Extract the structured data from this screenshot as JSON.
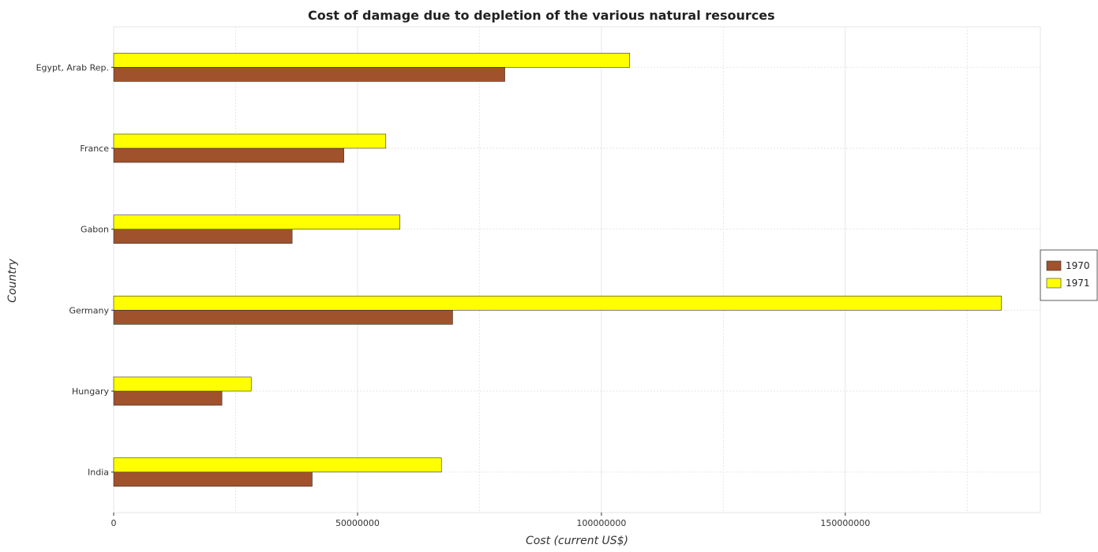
{
  "chart_data": {
    "type": "bar",
    "orientation": "horizontal",
    "title": "Cost of damage due to depletion of the various natural resources",
    "xlabel": "Cost (current US$)",
    "ylabel": "Country",
    "categories": [
      "Egypt, Arab Rep.",
      "France",
      "Gabon",
      "Germany",
      "Hungary",
      "India"
    ],
    "series": [
      {
        "name": "1970",
        "color": "#a0522d",
        "values": [
          80200000,
          47200000,
          36600000,
          69500000,
          22200000,
          40700000
        ]
      },
      {
        "name": "1971",
        "color": "#ffff00",
        "values": [
          105800000,
          55800000,
          58700000,
          182000000,
          28200000,
          67200000
        ]
      }
    ],
    "xlim": [
      0,
      190000000
    ],
    "xticks": [
      0,
      50000000,
      100000000,
      150000000
    ],
    "xtick_labels": [
      "0",
      "50000000",
      "100000000",
      "150000000"
    ],
    "grid": true,
    "legend_position": "right"
  }
}
